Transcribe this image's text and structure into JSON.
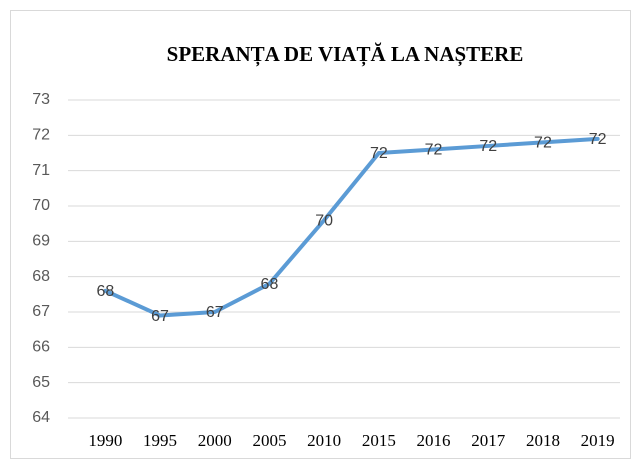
{
  "chart_data": {
    "type": "line",
    "title": "SPERANȚA DE VIAȚĂ LA NAȘTERE",
    "categories": [
      "1990",
      "1995",
      "2000",
      "2005",
      "2010",
      "2015",
      "2016",
      "2017",
      "2018",
      "2019"
    ],
    "values": [
      67.6,
      66.9,
      67.0,
      67.8,
      69.6,
      71.5,
      71.6,
      71.7,
      71.8,
      71.9
    ],
    "value_labels": [
      "68",
      "67",
      "67",
      "68",
      "70",
      "72",
      "72",
      "72",
      "72",
      "72"
    ],
    "color": "#5b9bd5",
    "ylim": [
      64,
      73
    ],
    "yticks": [
      64,
      65,
      66,
      67,
      68,
      69,
      70,
      71,
      72,
      73
    ],
    "grid": true
  }
}
